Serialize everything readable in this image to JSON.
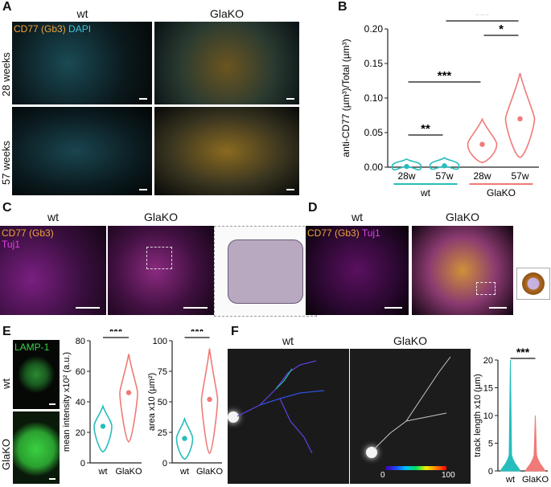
{
  "panel_letters": {
    "A": "A",
    "B": "B",
    "C": "C",
    "D": "D",
    "E": "E",
    "F": "F"
  },
  "panelA": {
    "col_wt": "wt",
    "col_ko": "GlaKO",
    "row1": "28 weeks",
    "row2": "57 weeks",
    "stain1": "CD77 (Gb3)",
    "stain2": "DAPI"
  },
  "panelC": {
    "col_wt": "wt",
    "col_ko": "GlaKO",
    "stain1": "CD77 (Gb3)",
    "stain2": "Tuj1"
  },
  "panelD": {
    "col_wt": "wt",
    "col_ko": "GlaKO",
    "stain1": "CD77 (Gb3)",
    "stain2": "Tuj1"
  },
  "panelE": {
    "stain": "LAMP-1",
    "row_wt": "wt",
    "row_ko": "GlaKO"
  },
  "panelF": {
    "col_wt": "wt",
    "col_ko": "GlaKO",
    "cbar_min": "0",
    "cbar_max": "100"
  },
  "colors": {
    "wt": "#26bdbd",
    "ko": "#f07a78",
    "cd77": "#f2a43a",
    "dapi": "#3fc6d8",
    "tuj1": "#e040e8",
    "lamp": "#39d24a"
  },
  "chart_data": [
    {
      "id": "B",
      "type": "violin",
      "ylabel": "anti-CD77 (µm³)/Total (µm³)",
      "ylim": [
        0,
        0.2
      ],
      "yticks": [
        "0.00",
        "0.05",
        "0.10",
        "0.15",
        "0.20"
      ],
      "categories": [
        "28w",
        "57w",
        "28w",
        "57w"
      ],
      "groups": [
        {
          "name": "wt",
          "categories": [
            "28w",
            "57w"
          ]
        },
        {
          "name": "GlaKO",
          "categories": [
            "28w",
            "57w"
          ]
        }
      ],
      "means": [
        0.001,
        0.002,
        0.033,
        0.07
      ],
      "significance": [
        {
          "from": 0,
          "to": 1,
          "label": "**"
        },
        {
          "from": 0,
          "to": 2,
          "label": "***"
        },
        {
          "from": 2,
          "to": 3,
          "label": "*"
        },
        {
          "from": 1,
          "to": 3,
          "label": "***"
        }
      ]
    },
    {
      "id": "E1",
      "type": "violin",
      "ylabel": "mean intensity x10² (a.u.)",
      "ylim": [
        0,
        80
      ],
      "yticks": [
        "0",
        "20",
        "40",
        "60",
        "80"
      ],
      "categories": [
        "wt",
        "GlaKO"
      ],
      "means": [
        24,
        46
      ],
      "significance": [
        {
          "from": 0,
          "to": 1,
          "label": "***"
        }
      ]
    },
    {
      "id": "E2",
      "type": "violin",
      "ylabel": "area x10 (µm²)",
      "ylim": [
        0,
        100
      ],
      "yticks": [
        "0",
        "25",
        "50",
        "75",
        "100"
      ],
      "categories": [
        "wt",
        "GlaKO"
      ],
      "means": [
        20,
        52
      ],
      "significance": [
        {
          "from": 0,
          "to": 1,
          "label": "***"
        }
      ]
    },
    {
      "id": "F",
      "type": "violin",
      "ylabel": "track length x10 (µm)",
      "ylim": [
        0,
        20
      ],
      "yticks": [
        "0",
        "5",
        "10",
        "15",
        "20"
      ],
      "categories": [
        "wt",
        "GlaKO"
      ],
      "means": [
        0.4,
        0.3
      ],
      "significance": [
        {
          "from": 0,
          "to": 1,
          "label": "***"
        }
      ]
    }
  ]
}
